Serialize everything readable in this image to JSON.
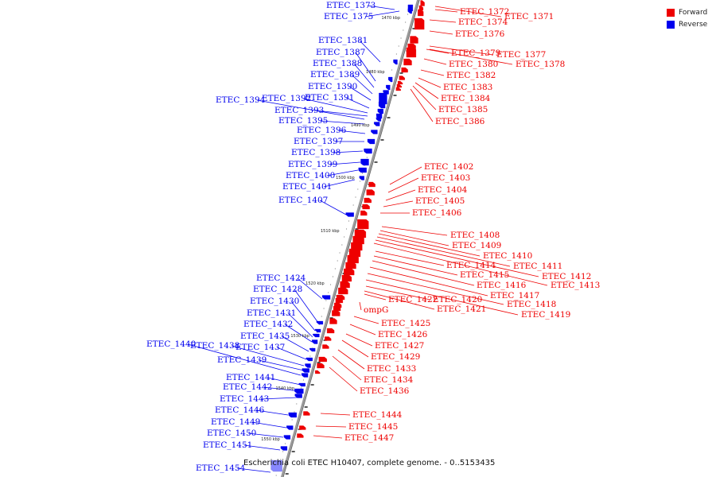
{
  "legend": {
    "items": [
      {
        "label": "Forward",
        "color": "#ee0000"
      },
      {
        "label": "Reverse",
        "color": "#0000ee"
      }
    ]
  },
  "caption": "Escherichia coli ETEC H10407, complete genome. - 0..5153435",
  "colors": {
    "forward": "#ee0000",
    "reverse": "#0000ee",
    "backbone": "#888888",
    "selection": "#8888ff"
  },
  "ticks": [
    "1470 kbp",
    "1480 kbp",
    "1490 kbp",
    "1500 kbp",
    "1510 kbp",
    "1520 kbp",
    "1530 kbp",
    "1540 kbp",
    "1550 kbp"
  ],
  "forward_genes": [
    "ETEC_1371",
    "ETEC_1372",
    "ETEC_1374",
    "ETEC_1376",
    "ETEC_1377",
    "ETEC_1378",
    "ETEC_1379",
    "ETEC_1380",
    "ETEC_1382",
    "ETEC_1383",
    "ETEC_1384",
    "ETEC_1385",
    "ETEC_1386",
    "ETEC_1402",
    "ETEC_1403",
    "ETEC_1404",
    "ETEC_1405",
    "ETEC_1406",
    "ETEC_1408",
    "ETEC_1409",
    "ETEC_1410",
    "ETEC_1411",
    "ETEC_1412",
    "ETEC_1413",
    "ETEC_1414",
    "ETEC_1415",
    "ETEC_1416",
    "ETEC_1417",
    "ETEC_1418",
    "ETEC_1419",
    "ETEC_1420",
    "ETEC_1421",
    "ETEC_1422",
    "ompG",
    "ETEC_1425",
    "ETEC_1426",
    "ETEC_1427",
    "ETEC_1429",
    "ETEC_1433",
    "ETEC_1434",
    "ETEC_1436",
    "ETEC_1444",
    "ETEC_1445",
    "ETEC_1447"
  ],
  "reverse_genes": [
    "ETEC_1373",
    "ETEC_1375",
    "ETEC_1381",
    "ETEC_1387",
    "ETEC_1388",
    "ETEC_1389",
    "ETEC_1390",
    "ETEC_1391",
    "ETEC_1392",
    "ETEC_1393",
    "ETEC_1394",
    "ETEC_1395",
    "ETEC_1396",
    "ETEC_1397",
    "ETEC_1398",
    "ETEC_1399",
    "ETEC_1400",
    "ETEC_1401",
    "ETEC_1407",
    "ETEC_1424",
    "ETEC_1428",
    "ETEC_1430",
    "ETEC_1431",
    "ETEC_1432",
    "ETEC_1435",
    "ETEC_1437",
    "ETEC_1438",
    "ETEC_1439",
    "ETEC_1440",
    "ETEC_1441",
    "ETEC_1442",
    "ETEC_1443",
    "ETEC_1446",
    "ETEC_1449",
    "ETEC_1450",
    "ETEC_1451",
    "ETEC_1454"
  ]
}
